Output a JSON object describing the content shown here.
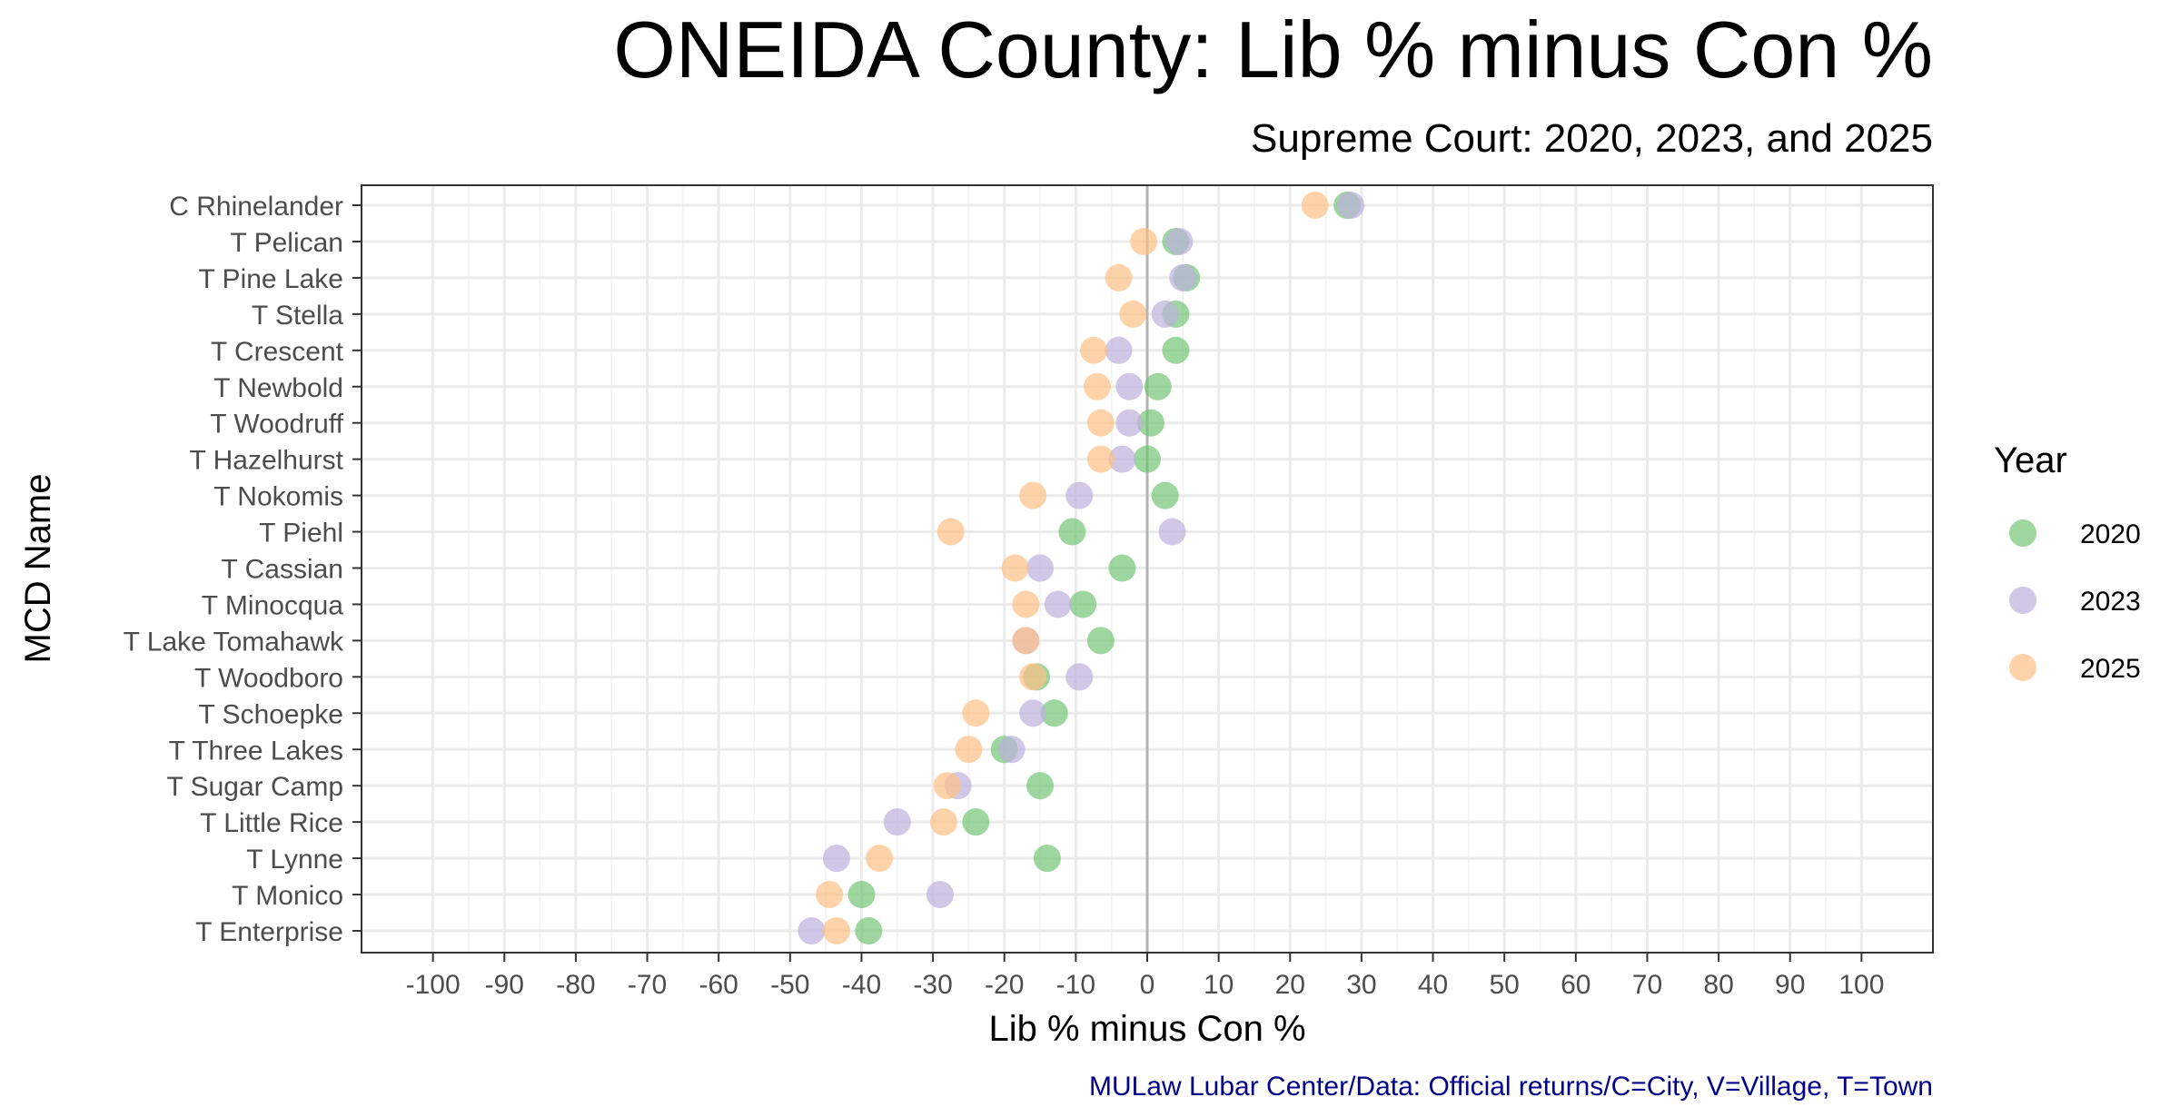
{
  "chart_data": {
    "type": "scatter",
    "title": "ONEIDA County: Lib % minus Con %",
    "subtitle": "Supreme Court: 2020, 2023, and 2025",
    "xlabel": "Lib % minus Con %",
    "ylabel": "MCD Name",
    "caption": "MULaw Lubar Center/Data: Official returns/C=City, V=Village, T=Town",
    "xlim": [
      -110,
      110
    ],
    "x_ticks": [
      -100,
      -90,
      -80,
      -70,
      -60,
      -50,
      -40,
      -30,
      -20,
      -10,
      0,
      10,
      20,
      30,
      40,
      50,
      60,
      70,
      80,
      90,
      100
    ],
    "grid": true,
    "zero_line": 0,
    "legend": {
      "title": "Year",
      "position": "right"
    },
    "categories": [
      "C Rhinelander",
      "T Pelican",
      "T Pine Lake",
      "T Stella",
      "T Crescent",
      "T Newbold",
      "T Woodruff",
      "T Hazelhurst",
      "T Nokomis",
      "T Piehl",
      "T Cassian",
      "T Minocqua",
      "T Lake Tomahawk",
      "T Woodboro",
      "T Schoepke",
      "T Three Lakes",
      "T Sugar Camp",
      "T Little Rice",
      "T Lynne",
      "T Monico",
      "T Enterprise"
    ],
    "series": [
      {
        "name": "2020",
        "color": "#74c476",
        "values": [
          28,
          4,
          5.5,
          4,
          4,
          1.5,
          0.5,
          0,
          2.5,
          -10.5,
          -3.5,
          -9,
          -6.5,
          -15.5,
          -13,
          -20,
          -15,
          -24,
          -14,
          -40,
          -39
        ]
      },
      {
        "name": "2023",
        "color": "#bcb0dc",
        "values": [
          28.5,
          4.5,
          5,
          2.5,
          -4,
          -2.5,
          -2.5,
          -3.5,
          -9.5,
          3.5,
          -15,
          -12.5,
          -17,
          -9.5,
          -16,
          -19,
          -26.5,
          -35,
          -43.5,
          -29,
          -47
        ]
      },
      {
        "name": "2025",
        "color": "#fdc086",
        "values": [
          23.5,
          -0.5,
          -4,
          -2,
          -7.5,
          -7,
          -6.5,
          -6.5,
          -16,
          -27.5,
          -18.5,
          -17,
          -17,
          -16,
          -24,
          -25,
          -28,
          -28.5,
          -37.5,
          -44.5,
          -43.5
        ]
      }
    ]
  }
}
